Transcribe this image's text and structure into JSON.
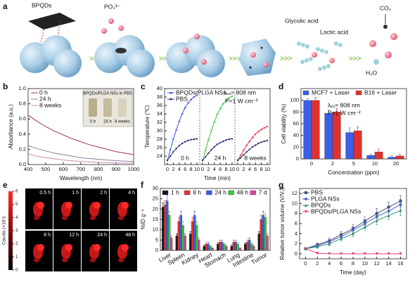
{
  "schematic": {
    "panel_label": "a",
    "labels": {
      "bpqds": "BPQDs",
      "phosphate": "PO₄³⁻",
      "glycolic": "Glycolic acid",
      "lactic": "Lactic acid",
      "co2": "CO₂",
      "h2o": "H₂O"
    }
  },
  "imaging": {
    "panel_label": "e",
    "time_labels": [
      "0.5 h",
      "1 h",
      "2 h",
      "4 h",
      "8 h",
      "12 h",
      "24 h",
      "48 h"
    ],
    "colorbar": {
      "label": "Counts (×10⁴)",
      "ticks": [
        0,
        1,
        2,
        3,
        4,
        5,
        6
      ],
      "lim": [
        0,
        6
      ]
    }
  },
  "chart_data": [
    {
      "type": "line",
      "panel_label": "b",
      "xlabel": "Wavelength (nm)",
      "ylabel": "Absorbance (a.u.)",
      "x": [
        400,
        450,
        500,
        550,
        600,
        650,
        700,
        750,
        800,
        850,
        900,
        950,
        1000
      ],
      "xlim": [
        400,
        1000
      ],
      "xticks": [
        400,
        500,
        600,
        700,
        800,
        900,
        1000
      ],
      "ylim": [
        0,
        1
      ],
      "yticks": [
        {
          "value": 0,
          "label": "0.0"
        },
        0.2,
        0.4,
        0.6,
        0.8,
        {
          "value": 1,
          "label": "1.0"
        }
      ],
      "legend": "upper left",
      "series": [
        {
          "name": "0 h",
          "color": "#9c3b4b",
          "values": [
            0.65,
            0.57,
            0.5,
            0.44,
            0.39,
            0.34,
            0.3,
            0.26,
            0.23,
            0.2,
            0.17,
            0.15,
            0.13
          ]
        },
        {
          "name": "24 h",
          "color": "#8a7d9c",
          "values": [
            0.25,
            0.21,
            0.18,
            0.15,
            0.13,
            0.11,
            0.09,
            0.08,
            0.07,
            0.06,
            0.05,
            0.045,
            0.04
          ]
        },
        {
          "name": "8 weeks",
          "color": "#d08aa8",
          "values": [
            0.14,
            0.11,
            0.09,
            0.075,
            0.06,
            0.05,
            0.04,
            0.035,
            0.03,
            0.025,
            0.02,
            0.02,
            0.02
          ]
        }
      ],
      "inset": {
        "title": "BPQDs/PLGA NSs in PBS",
        "labels": [
          "0 h",
          "24 h",
          "8 weeks"
        ]
      }
    },
    {
      "type": "line",
      "panel_label": "c",
      "xlabel": "Time (min)",
      "ylabel": "Temperature (℃)",
      "x": [
        0,
        1,
        2,
        3,
        4,
        5,
        6,
        7,
        8,
        9,
        10
      ],
      "xlim": [
        0,
        10
      ],
      "xticks": [
        0,
        2,
        4,
        6,
        8,
        10
      ],
      "ylim": [
        22,
        40
      ],
      "yticks": [
        24,
        26,
        28,
        30,
        32,
        34,
        36,
        38,
        40
      ],
      "segment_labels": [
        "0 h",
        "24 h",
        "8 weeks"
      ],
      "legend": "upper left",
      "annotations": [
        "λₑₓ= 808 nm",
        "P=1 W cm⁻²"
      ],
      "series": [
        {
          "name": "BPQDs/PLGA NSs",
          "color": "#3b55e6",
          "segment_colors": [
            "#3b55e6",
            "#2ecc40",
            "#e8324a"
          ],
          "marker": "circle",
          "values": [
            [
              23,
              25.5,
              28,
              30.2,
              32.2,
              34,
              35.5,
              36.6,
              37.4,
              38,
              38.4
            ],
            [
              23,
              25.4,
              27.9,
              30.1,
              32.1,
              33.9,
              35.3,
              36.4,
              37.2,
              37.8,
              38.2
            ],
            [
              23,
              24.2,
              25.4,
              26.5,
              27.5,
              28.4,
              29.2,
              29.8,
              30.3,
              30.7,
              31
            ]
          ]
        },
        {
          "name": "PBS",
          "color": "#2b2f6b",
          "marker": "circle",
          "values": [
            [
              23,
              24,
              25,
              25.8,
              26.5,
              27,
              27.4,
              27.7,
              27.9,
              28,
              28.1
            ],
            [
              23,
              23.8,
              24.7,
              25.5,
              26.2,
              26.8,
              27.2,
              27.5,
              27.8,
              28,
              28.1
            ],
            [
              23,
              23.6,
              24.3,
              25,
              25.6,
              26.2,
              26.6,
              27,
              27.3,
              27.5,
              27.7
            ]
          ]
        }
      ]
    },
    {
      "type": "bar",
      "panel_label": "d",
      "xlabel": "Concentration (ppm)",
      "ylabel": "Cell viability (%)",
      "categories": [
        "0",
        "2",
        "5",
        "10",
        "20"
      ],
      "ylim": [
        0,
        120
      ],
      "yticks": [
        0,
        20,
        40,
        60,
        80,
        100
      ],
      "legend": "top",
      "annotations": [
        "λₑₓ= 808 nm",
        "P=1 W cm⁻²"
      ],
      "series": [
        {
          "name": "MCF7 + Laser",
          "color": "#3c5ee8",
          "values": [
            100,
            78,
            45,
            6,
            3
          ],
          "errors": [
            3,
            5,
            8,
            2,
            2
          ]
        },
        {
          "name": "B16 + Laser",
          "color": "#e0312f",
          "values": [
            100,
            80,
            48,
            12,
            5
          ],
          "errors": [
            5,
            6,
            7,
            5,
            3
          ]
        }
      ]
    },
    {
      "type": "bar",
      "panel_label": "f",
      "ylabel": "%ID g⁻¹",
      "categories": [
        "Liver",
        "Spleen",
        "Kidney",
        "Heart",
        "Stomach",
        "Lung",
        "Intestine",
        "Tumor"
      ],
      "ylim": [
        0,
        30
      ],
      "yticks": [
        0,
        5,
        10,
        15,
        20,
        25,
        30
      ],
      "legend": "top",
      "series": [
        {
          "name": "1 h",
          "color": "#1a1a1a",
          "values": [
            21,
            7,
            8,
            2,
            3,
            2,
            3,
            8
          ],
          "errors": [
            2,
            1,
            1,
            0.5,
            0.5,
            0.5,
            0.5,
            1
          ]
        },
        {
          "name": "8 h",
          "color": "#e53030",
          "values": [
            22,
            14,
            14,
            3,
            4,
            4,
            4,
            15
          ],
          "errors": [
            2,
            2,
            2,
            0.5,
            1,
            1,
            1,
            2
          ]
        },
        {
          "name": "24 h",
          "color": "#3a5fe6",
          "values": [
            24,
            17,
            17,
            3,
            4,
            4,
            5,
            17
          ],
          "errors": [
            3,
            2,
            2,
            1,
            1,
            1,
            1,
            2
          ]
        },
        {
          "name": "48 h",
          "color": "#33cc33",
          "values": [
            17,
            12,
            12,
            2,
            3,
            3,
            3,
            16
          ],
          "errors": [
            2,
            2,
            2,
            0.5,
            0.5,
            0.5,
            0.5,
            2
          ]
        },
        {
          "name": "7 d",
          "color": "#e040a0",
          "values": [
            6,
            7,
            5,
            1,
            2,
            1,
            2,
            7
          ],
          "errors": [
            1,
            1,
            1,
            0.3,
            0.5,
            0.3,
            0.5,
            1
          ]
        }
      ]
    },
    {
      "type": "line",
      "panel_label": "g",
      "xlabel": "Time (day)",
      "ylabel": "Relative tumor volume (V/V₀)",
      "x": [
        0,
        2,
        4,
        6,
        8,
        10,
        12,
        14,
        16
      ],
      "xlim": [
        -1,
        17
      ],
      "xticks": [
        0,
        2,
        4,
        6,
        8,
        10,
        12,
        14,
        16
      ],
      "ylim": [
        -1,
        13
      ],
      "yticks": [
        0,
        2,
        4,
        6,
        8,
        10,
        12
      ],
      "legend": "upper left",
      "series": [
        {
          "name": "PBS",
          "color": "#4a4f6e",
          "marker": "square",
          "values": [
            1,
            1.8,
            2.6,
            3.8,
            5,
            6.5,
            8,
            9.3,
            10.5
          ],
          "errors": [
            0,
            0.3,
            0.5,
            0.6,
            0.8,
            0.9,
            1,
            1,
            1.1
          ]
        },
        {
          "name": "PLGA NSs",
          "color": "#4a63c8",
          "marker": "circle",
          "values": [
            1,
            1.6,
            2.4,
            3.4,
            4.7,
            6,
            7.4,
            8.5,
            9.8
          ],
          "errors": [
            0,
            0.3,
            0.4,
            0.5,
            0.7,
            0.8,
            0.9,
            1,
            1
          ]
        },
        {
          "name": "BPQDs",
          "color": "#2f8f7a",
          "marker": "triangle",
          "values": [
            1,
            1.4,
            2,
            3,
            4,
            5.3,
            6.6,
            7.6,
            8.6
          ],
          "errors": [
            0,
            0.3,
            0.4,
            0.5,
            0.6,
            0.7,
            0.8,
            0.9,
            1
          ]
        },
        {
          "name": "BPQDs/PLGA NSs",
          "color": "#e8407a",
          "marker": "triangle-down",
          "values": [
            1,
            0.1,
            0,
            0,
            0,
            0,
            0,
            0,
            0
          ],
          "errors": [
            0,
            0.1,
            0,
            0,
            0,
            0,
            0,
            0,
            0
          ]
        }
      ]
    }
  ]
}
